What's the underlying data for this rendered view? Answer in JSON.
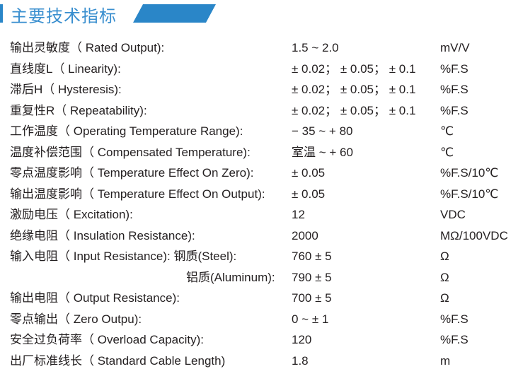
{
  "section_title": "主要技术指标",
  "accent_color": "#2a86c8",
  "rows": [
    {
      "label": "输出灵敏度（ Rated Output):",
      "value": "1.5 ~ 2.0",
      "unit": "mV/V"
    },
    {
      "label": "直线度L（ Linearity):",
      "value": "± 0.02；  ± 0.05；  ± 0.1",
      "unit": "%F.S"
    },
    {
      "label": "滞后H（ Hysteresis):",
      "value": "± 0.02；  ± 0.05；  ± 0.1",
      "unit": "%F.S"
    },
    {
      "label": "重复性R（ Repeatability):",
      "value": "± 0.02；  ± 0.05；  ± 0.1",
      "unit": "%F.S"
    },
    {
      "label": "工作温度（ Operating Temperature Range):",
      "value": "− 35 ~  + 80",
      "unit": "℃"
    },
    {
      "label": "温度补偿范围（ Compensated Temperature):",
      "value": "室温 ~  + 60",
      "unit": "℃"
    },
    {
      "label": "零点温度影响（ Temperature Effect On Zero):",
      "value": "± 0.05",
      "unit": "%F.S/10℃"
    },
    {
      "label": "输出温度影响（ Temperature Effect On Output):",
      "value": "± 0.05",
      "unit": "%F.S/10℃"
    },
    {
      "label": "激励电压（ Excitation):",
      "value": "12",
      "unit": "VDC"
    },
    {
      "label": "绝缘电阻（ Insulation Resistance):",
      "value": "2000",
      "unit": "MΩ/100VDC"
    },
    {
      "label": "输入电阻（ Input Resistance):  钢质(Steel):",
      "value": "760 ± 5",
      "unit": "Ω"
    },
    {
      "label": "铝质(Aluminum):",
      "value": "790 ± 5",
      "unit": "Ω",
      "indent": true
    },
    {
      "label": "输出电阻（ Output Resistance):",
      "value": "700 ± 5",
      "unit": "Ω"
    },
    {
      "label": "零点输出（ Zero Outpu):",
      "value": "0 ~  ± 1",
      "unit": "%F.S"
    },
    {
      "label": "安全过负荷率（ Overload Capacity):",
      "value": "120",
      "unit": "%F.S"
    },
    {
      "label": "出厂标准线长（ Standard Cable Length)",
      "value": "1.8",
      "unit": "m"
    }
  ]
}
